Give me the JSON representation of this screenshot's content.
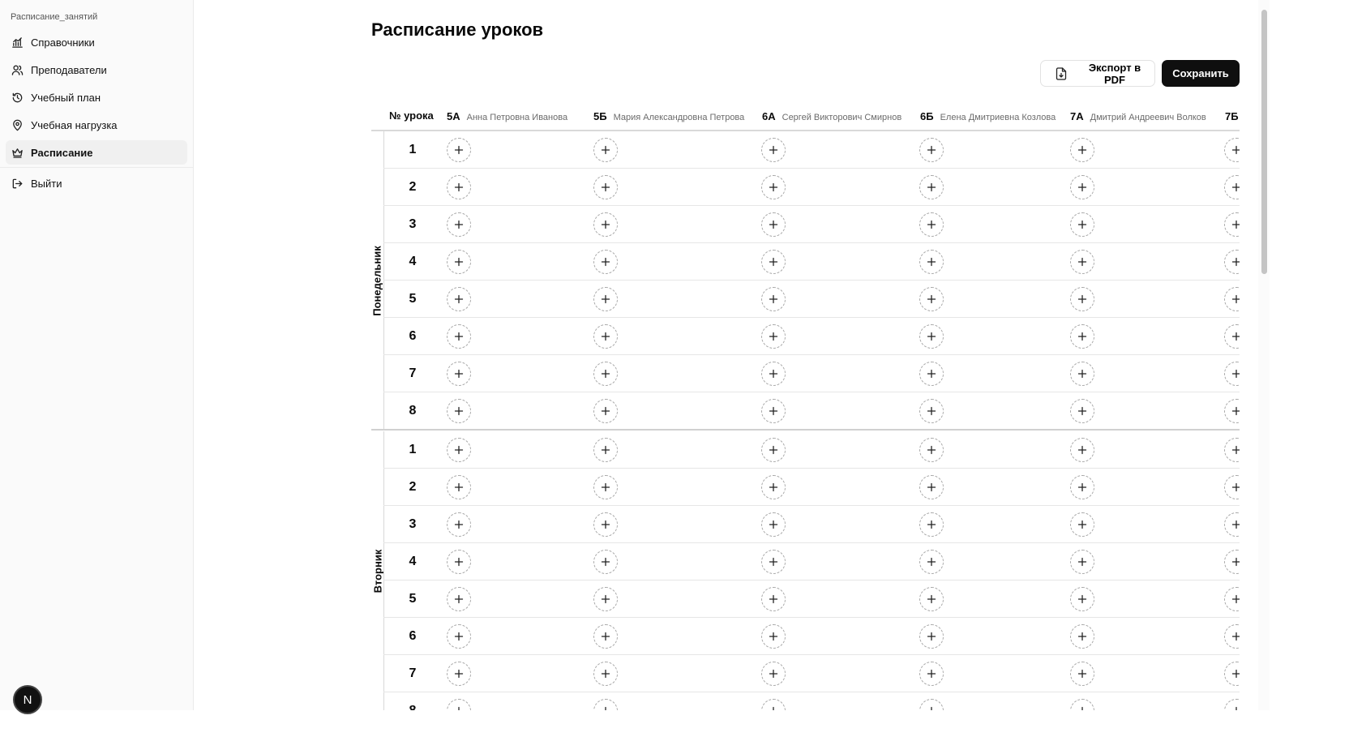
{
  "app": {
    "name": "Расписание_занятий"
  },
  "sidebar": {
    "items": [
      {
        "label": "Справочники",
        "icon": "chart-icon"
      },
      {
        "label": "Преподаватели",
        "icon": "users-icon"
      },
      {
        "label": "Учебный план",
        "icon": "history-icon"
      },
      {
        "label": "Учебная нагрузка",
        "icon": "map-pin-icon"
      },
      {
        "label": "Расписание",
        "icon": "crown-icon",
        "active": true
      }
    ],
    "logout_label": "Выйти",
    "avatar_letter": "N"
  },
  "page": {
    "title": "Расписание уроков"
  },
  "toolbar": {
    "export_label": "Экспорт в PDF",
    "save_label": "Сохранить"
  },
  "table": {
    "lesson_header": "№ урока",
    "columns": [
      {
        "class": "5А",
        "teacher": "Анна Петровна Иванова"
      },
      {
        "class": "5Б",
        "teacher": "Мария Александровна Петрова"
      },
      {
        "class": "6А",
        "teacher": "Сергей Викторович Смирнов"
      },
      {
        "class": "6Б",
        "teacher": "Елена Дмитриевна Козлова"
      },
      {
        "class": "7А",
        "teacher": "Дмитрий Андреевич Волков"
      },
      {
        "class": "7Б",
        "teacher": ""
      }
    ],
    "days": [
      {
        "name": "Понедельник",
        "lessons": [
          "1",
          "2",
          "3",
          "4",
          "5",
          "6",
          "7",
          "8"
        ]
      },
      {
        "name": "Вторник",
        "lessons": [
          "1",
          "2",
          "3",
          "4",
          "5",
          "6",
          "7",
          "8"
        ]
      }
    ]
  },
  "colors": {
    "primary": "#0f0f0f",
    "border": "#e6e6e6",
    "sidebar_bg": "#fafafa"
  }
}
